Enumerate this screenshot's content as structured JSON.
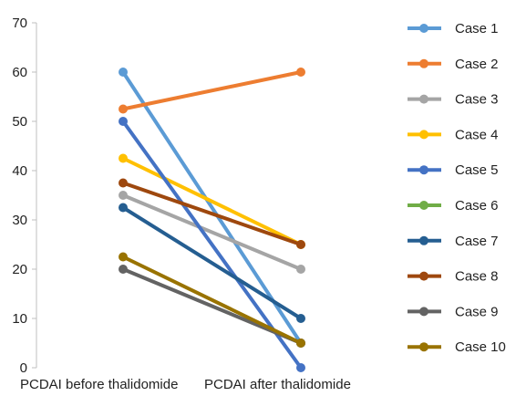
{
  "chart_data": {
    "type": "line",
    "categories": [
      "PCDAI before thalidomide",
      "PCDAI after thalidomide"
    ],
    "ylim": [
      0,
      70
    ],
    "yticks": [
      0,
      10,
      20,
      30,
      40,
      50,
      60,
      70
    ],
    "grid": false,
    "legend_position": "right",
    "series": [
      {
        "name": "Case 1",
        "color": "#5b9bd5",
        "values": [
          60,
          5
        ]
      },
      {
        "name": "Case 2",
        "color": "#ed7d31",
        "values": [
          52.5,
          60
        ]
      },
      {
        "name": "Case 3",
        "color": "#a5a5a5",
        "values": [
          35,
          20
        ]
      },
      {
        "name": "Case 4",
        "color": "#ffc000",
        "values": [
          42.5,
          25
        ]
      },
      {
        "name": "Case 5",
        "color": "#4472c4",
        "values": [
          50,
          0
        ]
      },
      {
        "name": "Case 6",
        "color": "#70ad47",
        "values": [
          null,
          null
        ]
      },
      {
        "name": "Case 7",
        "color": "#255e91",
        "values": [
          32.5,
          10
        ]
      },
      {
        "name": "Case 8",
        "color": "#9e480e",
        "values": [
          37.5,
          25
        ]
      },
      {
        "name": "Case 9",
        "color": "#636363",
        "values": [
          20,
          5
        ]
      },
      {
        "name": "Case 10",
        "color": "#997300",
        "values": [
          22.5,
          5
        ]
      }
    ]
  }
}
